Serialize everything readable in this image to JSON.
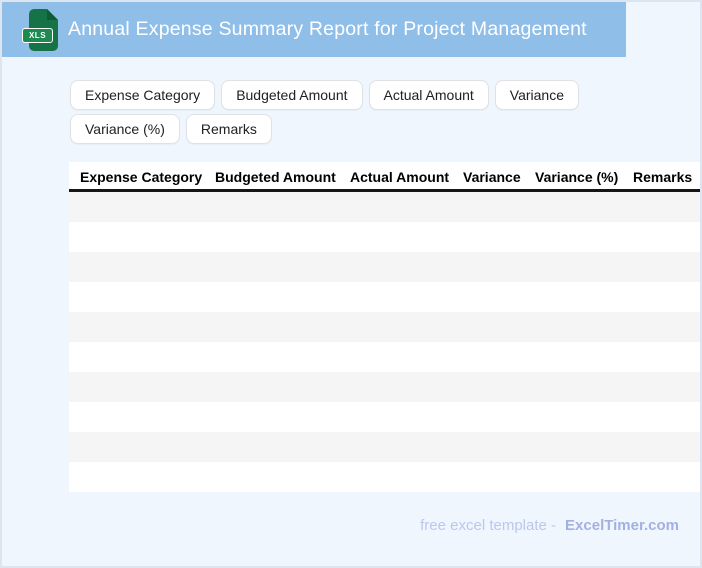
{
  "header": {
    "title": "Annual Expense Summary Report for Project Management",
    "file_badge": "XLS",
    "bar_color": "#8fbee9",
    "icon_color": "#157347"
  },
  "chips": [
    "Expense Category",
    "Budgeted Amount",
    "Actual Amount",
    "Variance",
    "Variance (%)",
    "Remarks"
  ],
  "table": {
    "columns": [
      "Expense Category",
      "Budgeted Amount",
      "Actual Amount",
      "Variance",
      "Variance (%)",
      "Remarks"
    ],
    "row_count": 10,
    "stripe_color": "#f5f5f5"
  },
  "footer": {
    "prefix": "free excel template -",
    "brand": "ExcelTimer.com"
  },
  "colors": {
    "page_background": "#eff6fd",
    "page_border": "#dde6f0",
    "header_divider": "#161616",
    "footer_prefix": "#bcc7ee",
    "footer_brand": "#a3b1e2"
  }
}
